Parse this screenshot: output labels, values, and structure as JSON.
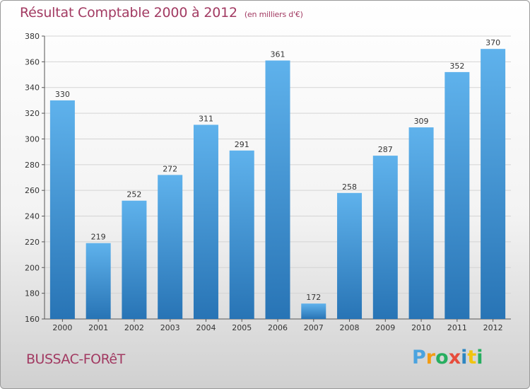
{
  "chart_data": {
    "type": "bar",
    "title": "Résultat Comptable 2000 à 2012",
    "subtitle": "(en milliers d'€)",
    "categories": [
      "2000",
      "2001",
      "2002",
      "2003",
      "2004",
      "2005",
      "2006",
      "2007",
      "2008",
      "2009",
      "2010",
      "2011",
      "2012"
    ],
    "values": [
      330,
      219,
      252,
      272,
      311,
      291,
      361,
      172,
      258,
      287,
      309,
      352,
      370
    ],
    "ylim": [
      160,
      380
    ],
    "yticks": [
      160,
      180,
      200,
      220,
      240,
      260,
      280,
      300,
      320,
      340,
      360,
      380
    ],
    "xlabel": "",
    "ylabel": "",
    "grid": true
  },
  "footer": {
    "city": "BUSSAC-FORêT",
    "logo_letters": [
      "P",
      "r",
      "o",
      "x",
      "i",
      "t",
      "i"
    ]
  },
  "colors": {
    "bar_light": "#5aaee8",
    "bar_dark": "#2a78b8",
    "title": "#a23a62",
    "logo": [
      "#4aa3df",
      "#f39c12",
      "#27ae60",
      "#e74c3c",
      "#2e86c1",
      "#f1c40f",
      "#27ae60"
    ]
  }
}
